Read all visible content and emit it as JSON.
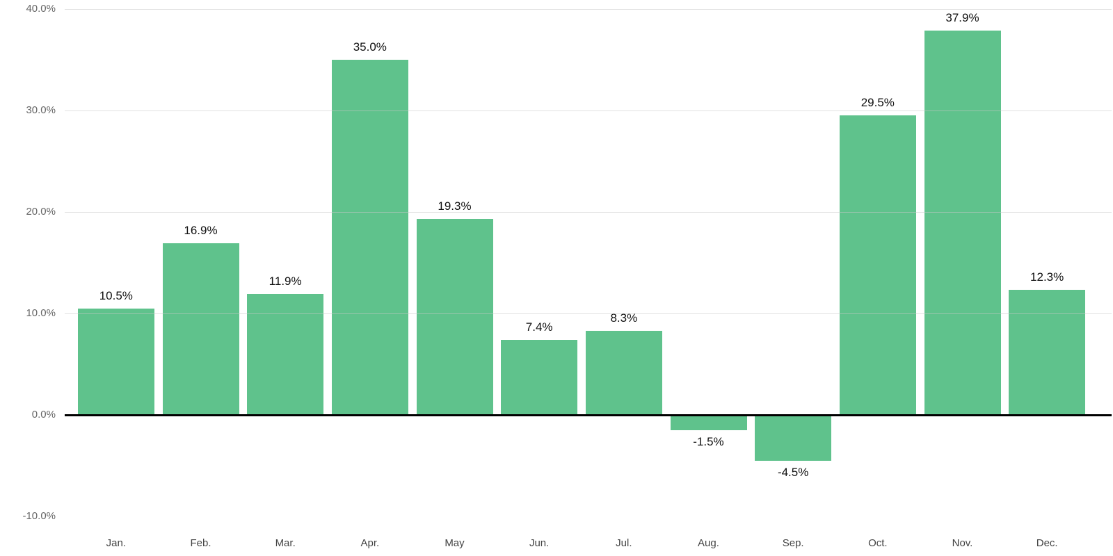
{
  "chart_data": {
    "type": "bar",
    "title": "",
    "xlabel": "",
    "ylabel": "",
    "categories": [
      "Jan.",
      "Feb.",
      "Mar.",
      "Apr.",
      "May",
      "Jun.",
      "Jul.",
      "Aug.",
      "Sep.",
      "Oct.",
      "Nov.",
      "Dec."
    ],
    "values": [
      10.5,
      16.9,
      11.9,
      35.0,
      19.3,
      7.4,
      8.3,
      -1.5,
      -4.5,
      29.5,
      37.9,
      12.3
    ],
    "value_labels": [
      "10.5%",
      "16.9%",
      "11.9%",
      "35.0%",
      "19.3%",
      "7.4%",
      "8.3%",
      "-1.5%",
      "-4.5%",
      "29.5%",
      "37.9%",
      "12.3%"
    ],
    "ylim": [
      -10,
      40
    ],
    "yticks": [
      {
        "label": "40.0%",
        "value": 40,
        "gridline": true,
        "axis_line": false
      },
      {
        "label": "30.0%",
        "value": 30,
        "gridline": true,
        "axis_line": false
      },
      {
        "label": "20.0%",
        "value": 20,
        "gridline": true,
        "axis_line": false
      },
      {
        "label": "10.0%",
        "value": 10,
        "gridline": true,
        "axis_line": false
      },
      {
        "label": "0.0%",
        "value": 0,
        "gridline": false,
        "axis_line": true
      },
      {
        "label": "-10.0%",
        "value": -10,
        "gridline": false,
        "axis_line": false
      }
    ],
    "grid": "horizontal-only",
    "legend": "none",
    "bar_color": "#5fc28c",
    "axis_line_color": "#000000",
    "gridline_color": "#e0e0e0",
    "value_label_color": "#111111",
    "ytick_label_color": "#666666",
    "xtick_label_color": "#444444"
  }
}
